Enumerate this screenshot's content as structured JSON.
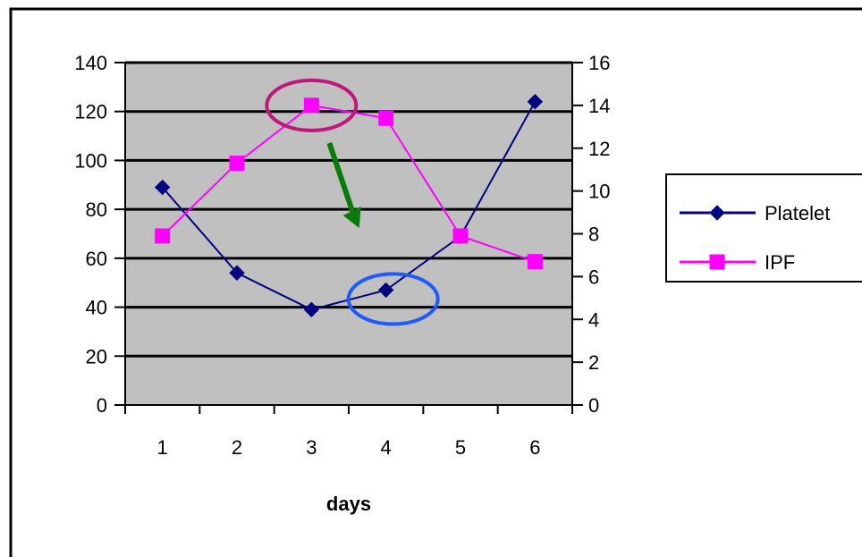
{
  "chart_data": {
    "type": "line",
    "title": "",
    "xlabel": "days",
    "ylabel": "",
    "y2label": "",
    "categories": [
      "1",
      "2",
      "3",
      "4",
      "5",
      "6"
    ],
    "ylim": [
      0,
      140
    ],
    "y_ticks": [
      "0",
      "20",
      "40",
      "60",
      "80",
      "100",
      "120",
      "140"
    ],
    "y2lim": [
      0,
      16
    ],
    "y2_ticks": [
      "0",
      "2",
      "4",
      "6",
      "8",
      "10",
      "12",
      "14",
      "16"
    ],
    "grid": "horizontal",
    "plot_background": "#C0C0C0",
    "legend_position": "right",
    "series": [
      {
        "name": "Platelet",
        "axis": "left",
        "color": "#000080",
        "marker": "diamond",
        "values": [
          89,
          54,
          39,
          47,
          69,
          124
        ]
      },
      {
        "name": "IPF",
        "axis": "right",
        "color": "#FF00FF",
        "marker": "square",
        "values": [
          7.9,
          11.3,
          14.0,
          13.4,
          7.9,
          6.7
        ]
      }
    ],
    "annotations": [
      {
        "kind": "ellipse",
        "color": "#C0187A",
        "near_category": "3",
        "near_series": "IPF"
      },
      {
        "kind": "ellipse",
        "color": "#1E5AFF",
        "near_category": "4",
        "near_series": "Platelet"
      },
      {
        "kind": "arrow",
        "color": "#0A7A0A",
        "from_category": "3",
        "to_category": "4"
      }
    ]
  }
}
